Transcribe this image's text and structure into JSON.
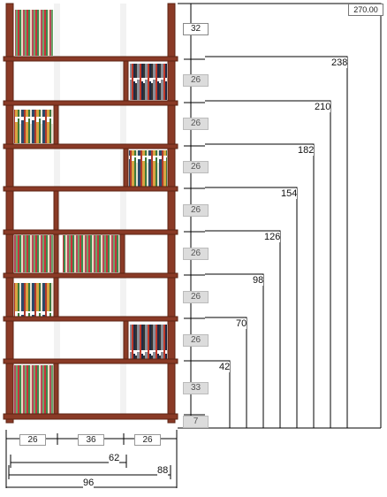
{
  "diagram": {
    "total_height_label": "270.00",
    "height_marks": [
      "238",
      "210",
      "182",
      "154",
      "126",
      "98",
      "70",
      "42"
    ],
    "compartment_heights": [
      "32",
      "26",
      "26",
      "26",
      "26",
      "26",
      "26",
      "26",
      "33",
      "7"
    ],
    "column_widths": [
      "26",
      "36",
      "26"
    ],
    "cumulative_widths": [
      "62",
      "88",
      "96"
    ]
  }
}
